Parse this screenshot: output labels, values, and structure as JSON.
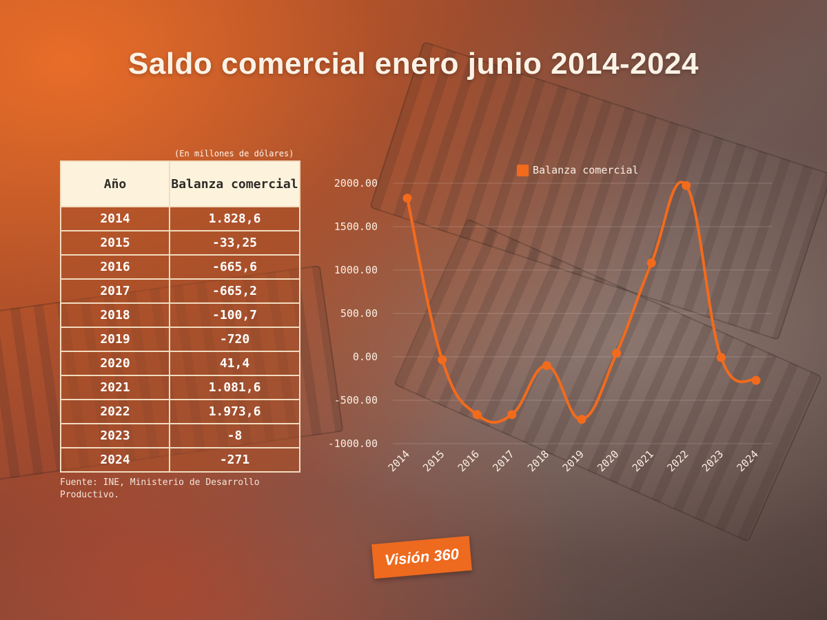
{
  "title": "Saldo comercial enero junio 2014-2024",
  "units_note": "(En millones de dólares)",
  "table": {
    "headers": [
      "Año",
      "Balanza comercial"
    ],
    "rows": [
      {
        "year": "2014",
        "value": "1.828,6"
      },
      {
        "year": "2015",
        "value": "-33,25"
      },
      {
        "year": "2016",
        "value": "-665,6"
      },
      {
        "year": "2017",
        "value": "-665,2"
      },
      {
        "year": "2018",
        "value": "-100,7"
      },
      {
        "year": "2019",
        "value": "-720"
      },
      {
        "year": "2020",
        "value": "41,4"
      },
      {
        "year": "2021",
        "value": "1.081,6"
      },
      {
        "year": "2022",
        "value": "1.973,6"
      },
      {
        "year": "2023",
        "value": "-8"
      },
      {
        "year": "2024",
        "value": "-271"
      }
    ]
  },
  "source": "Fuente: INE, Ministerio de Desarrollo Productivo.",
  "logo_text": "Visión 360",
  "colors": {
    "accent": "#f26b1d",
    "table_header": "#fdf3dc",
    "table_border": "#f2dcc0"
  },
  "chart_data": {
    "type": "line",
    "x": [
      "2014",
      "2015",
      "2016",
      "2017",
      "2018",
      "2019",
      "2020",
      "2021",
      "2022",
      "2023",
      "2024"
    ],
    "series": [
      {
        "name": "Balanza comercial",
        "values": [
          1828.6,
          -33.25,
          -665.6,
          -665.2,
          -100.7,
          -720,
          41.4,
          1081.6,
          1973.6,
          -8,
          -271
        ]
      }
    ],
    "yticks": [
      "2000.00",
      "1500.00",
      "1000.00",
      "500.00",
      "0.00",
      "-500.00",
      "-1000.00"
    ],
    "ylim": [
      -1000,
      2000
    ],
    "legend": "top",
    "grid": true
  }
}
